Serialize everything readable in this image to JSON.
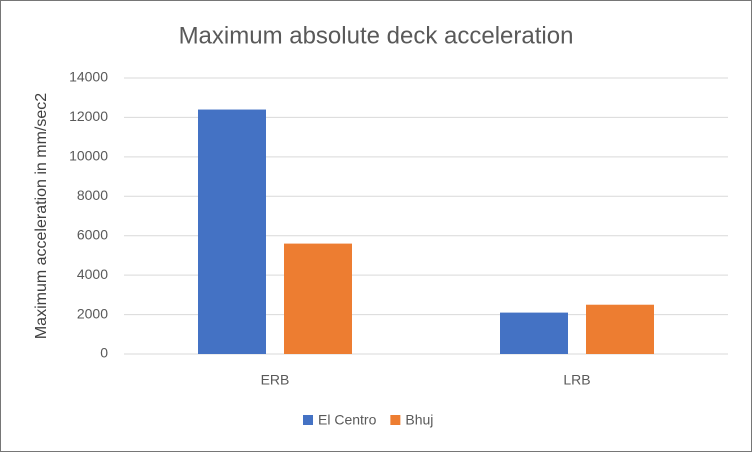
{
  "chart_data": {
    "type": "bar",
    "title": "Maximum absolute deck acceleration",
    "y_label": "Maximum acceleration in mm/sec2",
    "categories": [
      "ERB",
      "LRB"
    ],
    "series": [
      {
        "name": "El Centro",
        "color": "#4472c4",
        "values": [
          12400,
          2100
        ]
      },
      {
        "name": "Bhuj",
        "color": "#ed7d31",
        "values": [
          5600,
          2500
        ]
      }
    ],
    "ylim": [
      0,
      14000
    ],
    "yticks": [
      0,
      2000,
      4000,
      6000,
      8000,
      10000,
      12000,
      14000
    ],
    "grid": true,
    "legend": "bottom"
  }
}
